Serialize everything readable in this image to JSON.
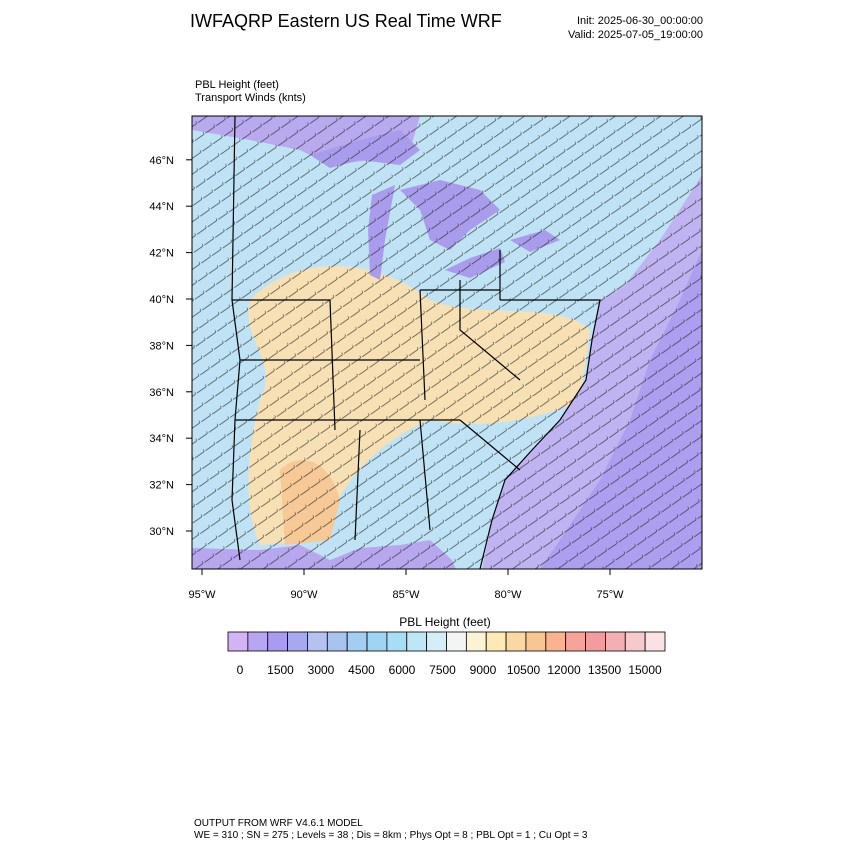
{
  "header": {
    "title": "IWFAQRP Eastern US Real Time WRF",
    "init": "Init: 2025-06-30_00:00:00",
    "valid": "Valid: 2025-07-05_19:00:00"
  },
  "fields": [
    "PBL Height   (feet)",
    "Transport Winds   (knts)"
  ],
  "map": {
    "lat_ticks": [
      {
        "value": 30,
        "label": "30°N"
      },
      {
        "value": 32,
        "label": "32°N"
      },
      {
        "value": 34,
        "label": "34°N"
      },
      {
        "value": 36,
        "label": "36°N"
      },
      {
        "value": 38,
        "label": "38°N"
      },
      {
        "value": 40,
        "label": "40°N"
      },
      {
        "value": 42,
        "label": "42°N"
      },
      {
        "value": 44,
        "label": "44°N"
      },
      {
        "value": 46,
        "label": "46°N"
      }
    ],
    "lon_ticks": [
      {
        "value": -95,
        "label": "95°W"
      },
      {
        "value": -90,
        "label": "90°W"
      },
      {
        "value": -85,
        "label": "85°W"
      },
      {
        "value": -80,
        "label": "80°W"
      },
      {
        "value": -75,
        "label": "75°W"
      }
    ]
  },
  "colorbar": {
    "title": "PBL Height  (feet)",
    "colors": [
      "#d2b4f5",
      "#b9a6f2",
      "#a99cf0",
      "#a7a9ef",
      "#b3c2f0",
      "#a9c3f0",
      "#a4cdf2",
      "#9fd5f4",
      "#a8def5",
      "#bde6f6",
      "#d4eef7",
      "#f2f5f4",
      "#fbf4d4",
      "#fde9b5",
      "#fbd7a3",
      "#f8c693",
      "#f7b48f",
      "#f6a39a",
      "#f29ca0",
      "#f4afb2",
      "#f6c9cc",
      "#fae2e4"
    ],
    "ticks": [
      0,
      1500,
      3000,
      4500,
      6000,
      7500,
      9000,
      10500,
      12000,
      13500,
      15000
    ]
  },
  "footer": [
    "OUTPUT FROM WRF V4.6.1 MODEL",
    "WE = 310 ; SN = 275 ; Levels = 38 ; Dis = 8km ; Phys Opt = 8 ; PBL Opt = 1 ; Cu Opt = 3"
  ]
}
